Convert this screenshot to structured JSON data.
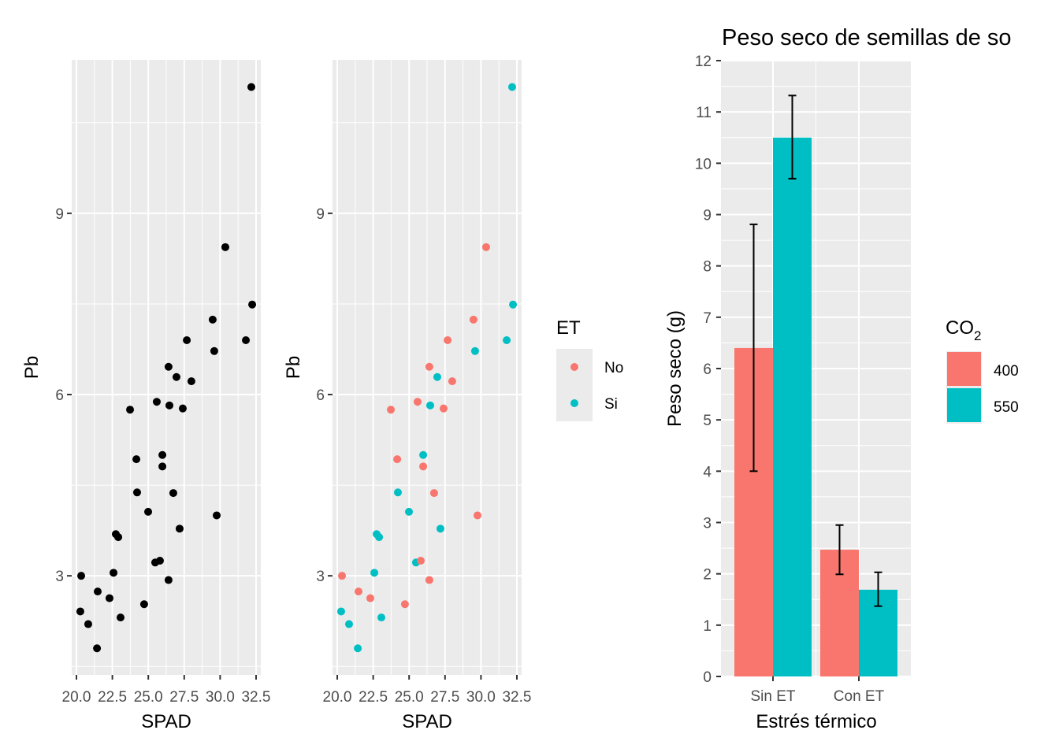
{
  "chart_data": [
    {
      "type": "scatter",
      "xlabel": "SPAD",
      "ylabel": "Pb",
      "xlim": [
        19.67,
        32.83
      ],
      "ylim": [
        1.36,
        11.54
      ],
      "x_ticks": [
        20.0,
        22.5,
        25.0,
        27.5,
        30.0,
        32.5
      ],
      "x_tick_labels": [
        "20.0",
        "22.5",
        "25.0",
        "27.5",
        "30.0",
        "32.5"
      ],
      "y_ticks": [
        3,
        6,
        9
      ],
      "y_tick_labels": [
        "3",
        "6",
        "9"
      ],
      "grid": true,
      "point_color": "#000000",
      "points": [
        {
          "x": 32.17,
          "y": 11.09
        },
        {
          "x": 30.36,
          "y": 8.44
        },
        {
          "x": 32.23,
          "y": 7.49
        },
        {
          "x": 29.48,
          "y": 7.24
        },
        {
          "x": 31.79,
          "y": 6.9
        },
        {
          "x": 27.68,
          "y": 6.9
        },
        {
          "x": 29.59,
          "y": 6.72
        },
        {
          "x": 26.96,
          "y": 6.29
        },
        {
          "x": 28.0,
          "y": 6.22
        },
        {
          "x": 26.41,
          "y": 6.46
        },
        {
          "x": 23.73,
          "y": 5.75
        },
        {
          "x": 25.59,
          "y": 5.88
        },
        {
          "x": 26.47,
          "y": 5.82
        },
        {
          "x": 27.4,
          "y": 5.77
        },
        {
          "x": 25.98,
          "y": 5.0
        },
        {
          "x": 24.17,
          "y": 4.93
        },
        {
          "x": 25.98,
          "y": 4.81
        },
        {
          "x": 24.22,
          "y": 4.38
        },
        {
          "x": 26.74,
          "y": 4.37
        },
        {
          "x": 24.99,
          "y": 4.06
        },
        {
          "x": 29.76,
          "y": 4.0
        },
        {
          "x": 27.18,
          "y": 3.78
        },
        {
          "x": 22.74,
          "y": 3.69
        },
        {
          "x": 22.91,
          "y": 3.64
        },
        {
          "x": 25.48,
          "y": 3.22
        },
        {
          "x": 25.81,
          "y": 3.25
        },
        {
          "x": 20.33,
          "y": 3.0
        },
        {
          "x": 22.58,
          "y": 3.05
        },
        {
          "x": 26.41,
          "y": 2.93
        },
        {
          "x": 21.48,
          "y": 2.74
        },
        {
          "x": 22.3,
          "y": 2.63
        },
        {
          "x": 24.71,
          "y": 2.53
        },
        {
          "x": 20.27,
          "y": 2.41
        },
        {
          "x": 23.07,
          "y": 2.31
        },
        {
          "x": 20.82,
          "y": 2.2
        },
        {
          "x": 21.43,
          "y": 1.8
        }
      ]
    },
    {
      "type": "scatter",
      "xlabel": "SPAD",
      "ylabel": "Pb",
      "xlim": [
        19.67,
        32.83
      ],
      "ylim": [
        1.36,
        11.54
      ],
      "x_ticks": [
        20.0,
        22.5,
        25.0,
        27.5,
        30.0,
        32.5
      ],
      "x_tick_labels": [
        "20.0",
        "22.5",
        "25.0",
        "27.5",
        "30.0",
        "32.5"
      ],
      "y_ticks": [
        3,
        6,
        9
      ],
      "y_tick_labels": [
        "3",
        "6",
        "9"
      ],
      "grid": true,
      "legend": {
        "title": "ET",
        "placement": "right",
        "entries": [
          {
            "label": "No",
            "color": "#F8766D"
          },
          {
            "label": "Si",
            "color": "#00BFC4"
          }
        ]
      },
      "points": [
        {
          "x": 32.17,
          "y": 11.09,
          "group": "Si"
        },
        {
          "x": 30.36,
          "y": 8.44,
          "group": "No"
        },
        {
          "x": 32.23,
          "y": 7.49,
          "group": "Si"
        },
        {
          "x": 29.48,
          "y": 7.24,
          "group": "No"
        },
        {
          "x": 31.79,
          "y": 6.9,
          "group": "Si"
        },
        {
          "x": 27.68,
          "y": 6.9,
          "group": "No"
        },
        {
          "x": 29.59,
          "y": 6.72,
          "group": "Si"
        },
        {
          "x": 26.96,
          "y": 6.29,
          "group": "Si"
        },
        {
          "x": 28.0,
          "y": 6.22,
          "group": "No"
        },
        {
          "x": 26.41,
          "y": 6.46,
          "group": "No"
        },
        {
          "x": 23.73,
          "y": 5.75,
          "group": "No"
        },
        {
          "x": 25.59,
          "y": 5.88,
          "group": "No"
        },
        {
          "x": 26.47,
          "y": 5.82,
          "group": "Si"
        },
        {
          "x": 27.4,
          "y": 5.77,
          "group": "No"
        },
        {
          "x": 25.98,
          "y": 5.0,
          "group": "Si"
        },
        {
          "x": 24.17,
          "y": 4.93,
          "group": "No"
        },
        {
          "x": 25.98,
          "y": 4.81,
          "group": "No"
        },
        {
          "x": 24.22,
          "y": 4.38,
          "group": "Si"
        },
        {
          "x": 26.74,
          "y": 4.37,
          "group": "No"
        },
        {
          "x": 24.99,
          "y": 4.06,
          "group": "Si"
        },
        {
          "x": 29.76,
          "y": 4.0,
          "group": "No"
        },
        {
          "x": 27.18,
          "y": 3.78,
          "group": "Si"
        },
        {
          "x": 22.74,
          "y": 3.69,
          "group": "Si"
        },
        {
          "x": 22.91,
          "y": 3.64,
          "group": "Si"
        },
        {
          "x": 25.48,
          "y": 3.22,
          "group": "Si"
        },
        {
          "x": 25.81,
          "y": 3.25,
          "group": "No"
        },
        {
          "x": 20.33,
          "y": 3.0,
          "group": "No"
        },
        {
          "x": 22.58,
          "y": 3.05,
          "group": "Si"
        },
        {
          "x": 26.41,
          "y": 2.93,
          "group": "No"
        },
        {
          "x": 21.48,
          "y": 2.74,
          "group": "No"
        },
        {
          "x": 22.3,
          "y": 2.63,
          "group": "No"
        },
        {
          "x": 24.71,
          "y": 2.53,
          "group": "No"
        },
        {
          "x": 20.27,
          "y": 2.41,
          "group": "Si"
        },
        {
          "x": 23.07,
          "y": 2.31,
          "group": "Si"
        },
        {
          "x": 20.82,
          "y": 2.2,
          "group": "Si"
        },
        {
          "x": 21.43,
          "y": 1.8,
          "group": "Si"
        }
      ]
    },
    {
      "type": "bar",
      "title": "Peso seco de semillas de so",
      "xlabel": "Estrés térmico",
      "ylabel": "Peso seco (g)",
      "ylim": [
        0,
        12
      ],
      "y_ticks": [
        0,
        1,
        2,
        3,
        4,
        5,
        6,
        7,
        8,
        9,
        10,
        11,
        12
      ],
      "grid": true,
      "categories": [
        "Sin ET",
        "Con ET"
      ],
      "legend": {
        "title_main": "CO",
        "title_sub": "2",
        "placement": "right"
      },
      "series": [
        {
          "name": "400",
          "color": "#F8766D",
          "values": [
            6.4,
            2.47
          ],
          "err_low": [
            4.0,
            1.99
          ],
          "err_high": [
            8.81,
            2.95
          ]
        },
        {
          "name": "550",
          "color": "#00BFC4",
          "values": [
            10.5,
            1.69
          ],
          "err_low": [
            9.7,
            1.37
          ],
          "err_high": [
            11.32,
            2.03
          ]
        }
      ]
    }
  ]
}
